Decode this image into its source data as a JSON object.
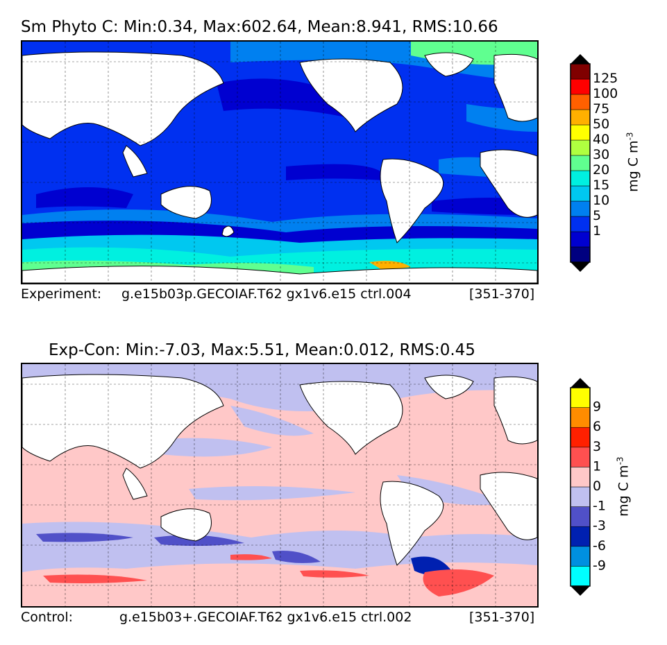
{
  "panel_top": {
    "title": "Sm Phyto C: Min:0.34, Max:602.64, Mean:8.941, RMS:10.66",
    "caption_label": "Experiment:",
    "caption_run": "g.e15b03p.GECOIAF.T62 gx1v6.e15 ctrl.004",
    "caption_years": "[351-370]",
    "units": "mg C m",
    "units_exp": "-3",
    "colorbar": {
      "ticks": [
        "125",
        "100",
        "75",
        "50",
        "40",
        "30",
        "20",
        "15",
        "10",
        "5",
        "1"
      ],
      "colors": [
        "#000080",
        "#0000d0",
        "#0030f0",
        "#0080f0",
        "#00c8f0",
        "#00f0e0",
        "#60ff90",
        "#b0ff40",
        "#ffff00",
        "#ffb000",
        "#ff6000",
        "#ff0000",
        "#800000"
      ]
    }
  },
  "panel_bottom": {
    "title": "Exp-Con: Min:-7.03, Max:5.51, Mean:0.012, RMS:0.45",
    "caption_label": "Control:",
    "caption_run": "g.e15b03+.GECOIAF.T62 gx1v6.e15 ctrl.002",
    "caption_years": "[351-370]",
    "units": "mg C m",
    "units_exp": "-3",
    "colorbar": {
      "ticks": [
        "9",
        "6",
        "3",
        "1",
        "0",
        "-1",
        "-3",
        "-6",
        "-9"
      ],
      "colors": [
        "#00ffff",
        "#0090e0",
        "#0020b0",
        "#5050c8",
        "#c0c0f0",
        "#ffc8c8",
        "#ff5050",
        "#ff2000",
        "#ff8c00",
        "#ffff00"
      ]
    }
  }
}
